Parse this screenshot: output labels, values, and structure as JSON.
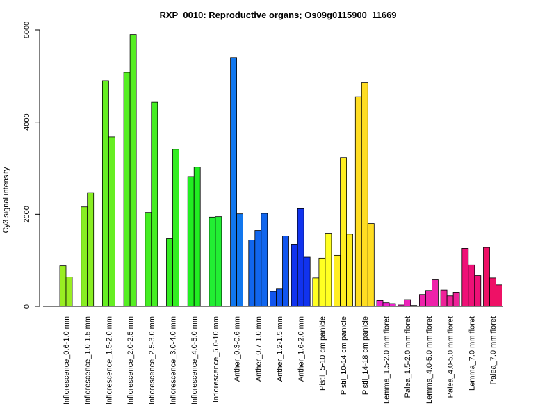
{
  "chart_data": {
    "type": "bar",
    "title": "RXP_0010: Reproductive organs; Os09g0115900_11669",
    "xlabel": "",
    "ylabel": "Cy3 signal intensity",
    "ylim": [
      0,
      6000
    ],
    "yticks": [
      "0",
      "2000",
      "4000",
      "6000"
    ],
    "grid": false,
    "groups": [
      {
        "label": "Inflorescence_0.6-1.0 mm",
        "color": "#99ee22",
        "values": [
          880,
          640
        ]
      },
      {
        "label": "Inflorescence_1.0-1.5 mm",
        "color": "#88ee22",
        "values": [
          2160,
          2470
        ]
      },
      {
        "label": "Inflorescence_1.5-2.0 mm",
        "color": "#66ee22",
        "values": [
          4900,
          3680
        ]
      },
      {
        "label": "Inflorescence_2.0-2.5 mm",
        "color": "#55ee22",
        "values": [
          5080,
          5900
        ]
      },
      {
        "label": "Inflorescence_2.5-3.0 mm",
        "color": "#44ee22",
        "values": [
          2040,
          4430
        ]
      },
      {
        "label": "Inflorescence_3.0-4.0 mm",
        "color": "#33ee22",
        "values": [
          1470,
          3410
        ]
      },
      {
        "label": "Inflorescence_4.0-5.0 mm",
        "color": "#22ee22",
        "values": [
          2820,
          3020
        ]
      },
      {
        "label": "Inflorescence_5.0-10 mm",
        "color": "#22ee33",
        "values": [
          1940,
          1950
        ]
      },
      {
        "label": "Anther_0.3-0.6 mm",
        "color": "#1177ee",
        "values": [
          5400,
          2010
        ]
      },
      {
        "label": "Anther_0.7-1.0 mm",
        "color": "#1166ee",
        "values": [
          1440,
          1650,
          2020
        ]
      },
      {
        "label": "Anther_1.2-1.5 mm",
        "color": "#1155ee",
        "values": [
          330,
          380,
          1530
        ]
      },
      {
        "label": "Anther_1.6-2.0 mm",
        "color": "#1133ee",
        "values": [
          1350,
          2120,
          1070
        ]
      },
      {
        "label": "Pistil_5-10 cm panicle",
        "color": "#ffff22",
        "values": [
          620,
          1050,
          1590
        ]
      },
      {
        "label": "Pistil_10-14 cm panicle",
        "color": "#ffee22",
        "values": [
          1110,
          3230,
          1570
        ]
      },
      {
        "label": "Pistil_14-18 cm panicle",
        "color": "#ffdd22",
        "values": [
          4550,
          4860,
          1800
        ]
      },
      {
        "label": "Lemma_1.5-2.0 mm floret",
        "color": "#ee22cc",
        "values": [
          130,
          80,
          60
        ]
      },
      {
        "label": "Palea_1.5-2.0 mm floret",
        "color": "#ee22bb",
        "values": [
          30,
          150,
          20
        ]
      },
      {
        "label": "Lemma_4.0-5.0 mm floret",
        "color": "#ee22aa",
        "values": [
          260,
          350,
          580
        ]
      },
      {
        "label": "Palea_4.0-5.0 mm floret",
        "color": "#ee2299",
        "values": [
          360,
          230,
          310
        ]
      },
      {
        "label": "Lemma_7.0 mm floret",
        "color": "#ee1177",
        "values": [
          1260,
          900,
          670
        ]
      },
      {
        "label": "Palea_7.0 mm floret",
        "color": "#ee1166",
        "values": [
          1280,
          620,
          470
        ]
      }
    ]
  }
}
